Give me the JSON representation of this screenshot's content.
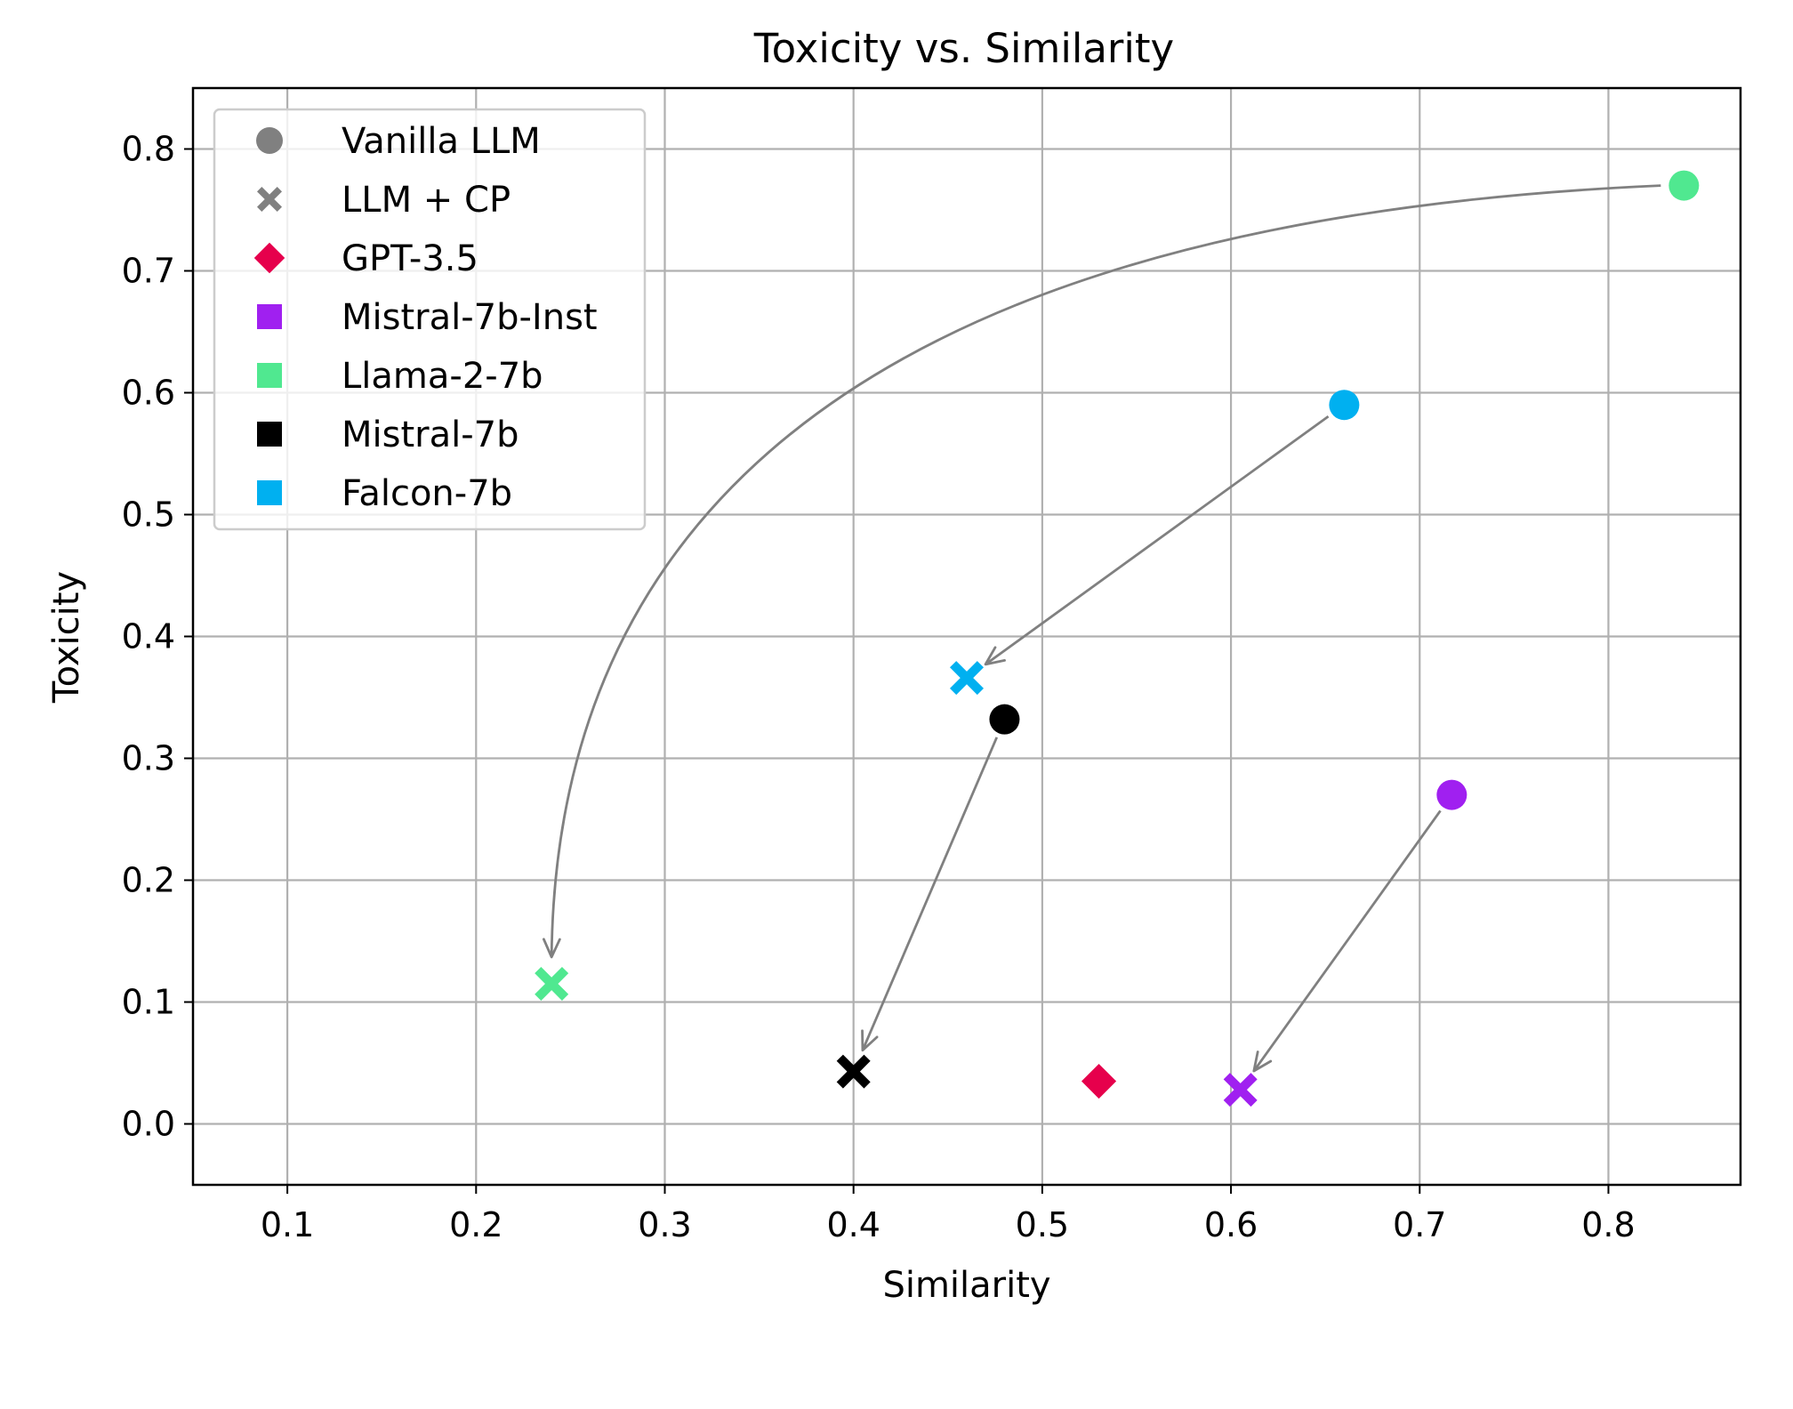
{
  "chart_data": {
    "type": "scatter",
    "title": "Toxicity vs. Similarity",
    "xlabel": "Similarity",
    "ylabel": "Toxicity",
    "xlim": [
      0.05,
      0.87
    ],
    "ylim": [
      -0.05,
      0.85
    ],
    "grid": true,
    "legend_position": "top-left",
    "x_ticks": [
      0.1,
      0.2,
      0.3,
      0.4,
      0.5,
      0.6,
      0.7,
      0.8
    ],
    "y_ticks": [
      0.0,
      0.1,
      0.2,
      0.3,
      0.4,
      0.5,
      0.6,
      0.7,
      0.8
    ],
    "x_tick_labels": [
      "0.1",
      "0.2",
      "0.3",
      "0.4",
      "0.5",
      "0.6",
      "0.7",
      "0.8"
    ],
    "y_tick_labels": [
      "0.0",
      "0.1",
      "0.2",
      "0.3",
      "0.4",
      "0.5",
      "0.6",
      "0.7",
      "0.8"
    ],
    "legend": [
      {
        "label": "Vanilla LLM",
        "marker": "circle",
        "color": "#808080"
      },
      {
        "label": "LLM + CP",
        "marker": "x",
        "color": "#808080"
      },
      {
        "label": "GPT-3.5",
        "marker": "diamond",
        "color": "#e6004c"
      },
      {
        "label": "Mistral-7b-Inst",
        "marker": "square",
        "color": "#a020f0"
      },
      {
        "label": "Llama-2-7b",
        "marker": "square",
        "color": "#50e890"
      },
      {
        "label": "Mistral-7b",
        "marker": "square",
        "color": "#000000"
      },
      {
        "label": "Falcon-7b",
        "marker": "square",
        "color": "#00b0f0"
      }
    ],
    "points": [
      {
        "model": "Llama-2-7b",
        "method": "Vanilla LLM",
        "marker": "circle",
        "color": "#50e890",
        "x": 0.84,
        "y": 0.77
      },
      {
        "model": "Llama-2-7b",
        "method": "LLM + CP",
        "marker": "x",
        "color": "#50e890",
        "x": 0.24,
        "y": 0.115
      },
      {
        "model": "Falcon-7b",
        "method": "Vanilla LLM",
        "marker": "circle",
        "color": "#00b0f0",
        "x": 0.66,
        "y": 0.59
      },
      {
        "model": "Falcon-7b",
        "method": "LLM + CP",
        "marker": "x",
        "color": "#00b0f0",
        "x": 0.46,
        "y": 0.366
      },
      {
        "model": "Mistral-7b",
        "method": "Vanilla LLM",
        "marker": "circle",
        "color": "#000000",
        "x": 0.48,
        "y": 0.332
      },
      {
        "model": "Mistral-7b",
        "method": "LLM + CP",
        "marker": "x",
        "color": "#000000",
        "x": 0.4,
        "y": 0.043
      },
      {
        "model": "Mistral-7b-Inst",
        "method": "Vanilla LLM",
        "marker": "circle",
        "color": "#a020f0",
        "x": 0.717,
        "y": 0.27
      },
      {
        "model": "Mistral-7b-Inst",
        "method": "LLM + CP",
        "marker": "x",
        "color": "#a020f0",
        "x": 0.605,
        "y": 0.028
      },
      {
        "model": "GPT-3.5",
        "method": "GPT-3.5",
        "marker": "diamond",
        "color": "#e6004c",
        "x": 0.53,
        "y": 0.035
      }
    ],
    "arrows": [
      {
        "model": "Llama-2-7b",
        "from": [
          0.84,
          0.77
        ],
        "to": [
          0.24,
          0.115
        ],
        "curved": true
      },
      {
        "model": "Falcon-7b",
        "from": [
          0.66,
          0.59
        ],
        "to": [
          0.46,
          0.366
        ],
        "curved": false
      },
      {
        "model": "Mistral-7b",
        "from": [
          0.48,
          0.332
        ],
        "to": [
          0.4,
          0.043
        ],
        "curved": false
      },
      {
        "model": "Mistral-7b-Inst",
        "from": [
          0.717,
          0.27
        ],
        "to": [
          0.605,
          0.028
        ],
        "curved": false
      }
    ],
    "arrow_color": "#808080"
  }
}
